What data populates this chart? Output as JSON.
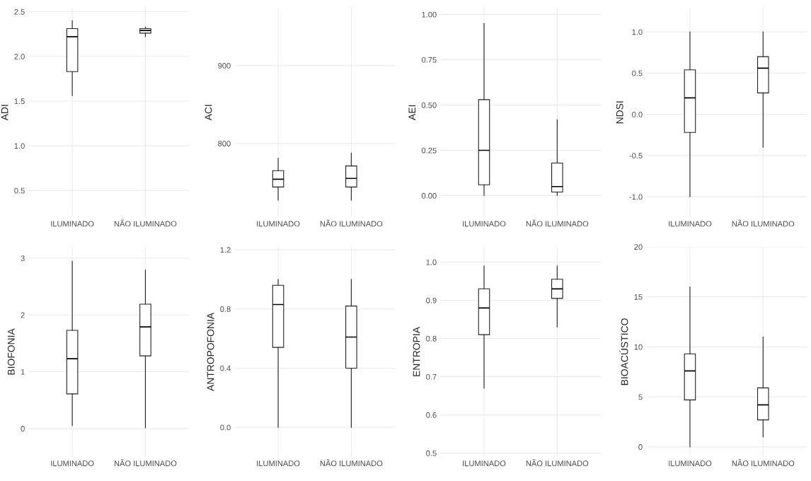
{
  "chart_data": [
    {
      "type": "box",
      "ylabel": "ADI",
      "categories": [
        "ILUMINADO",
        "NÃO ILUMINADO"
      ],
      "color": "#ffffff",
      "grid": true,
      "ylim": [
        0.2,
        2.55
      ],
      "yticks": [
        0.5,
        {
          "value": 1.0,
          "label": "1.0"
        },
        1.5,
        {
          "value": 2.0,
          "label": "2.0"
        },
        2.5
      ],
      "boxes": [
        {
          "low": 1.56,
          "q1": 1.83,
          "median": 2.22,
          "q3": 2.31,
          "high": 2.4
        },
        {
          "low": 2.22,
          "q1": 2.26,
          "median": 2.29,
          "q3": 2.31,
          "high": 2.33
        }
      ]
    },
    {
      "type": "box",
      "ylabel": "ACI",
      "categories": [
        "ILUMINADO",
        "NÃO ILUMINADO"
      ],
      "color": "#ffffff",
      "grid": true,
      "ylim": [
        705,
        975
      ],
      "yticks": [
        800,
        900
      ],
      "boxes": [
        {
          "low": 727,
          "q1": 744,
          "median": 754,
          "q3": 765,
          "high": 781
        },
        {
          "low": 727,
          "q1": 744,
          "median": 755,
          "q3": 771,
          "high": 788
        }
      ]
    },
    {
      "type": "box",
      "ylabel": "AEI",
      "categories": [
        "ILUMINADO",
        "NÃO ILUMINADO"
      ],
      "color": "#ffffff",
      "grid": true,
      "ylim": [
        -0.12,
        1.04
      ],
      "yticks": [
        {
          "value": 0.0,
          "label": "0.00"
        },
        {
          "value": 0.25,
          "label": "0.25"
        },
        {
          "value": 0.5,
          "label": "0.50"
        },
        {
          "value": 0.75,
          "label": "0.75"
        },
        {
          "value": 1.0,
          "label": "1.00"
        }
      ],
      "boxes": [
        {
          "low": 0.0,
          "q1": 0.06,
          "median": 0.25,
          "q3": 0.53,
          "high": 0.95
        },
        {
          "low": 0.0,
          "q1": 0.02,
          "median": 0.05,
          "q3": 0.18,
          "high": 0.42
        }
      ]
    },
    {
      "type": "box",
      "ylabel": "NDSI",
      "categories": [
        "ILUMINADO",
        "NÃO ILUMINADO"
      ],
      "color": "#ffffff",
      "grid": true,
      "ylim": [
        -1.25,
        1.3
      ],
      "yticks": [
        {
          "value": -1.0,
          "label": "-1.0"
        },
        -0.5,
        {
          "value": 0.0,
          "label": "0.0"
        },
        0.5,
        {
          "value": 1.0,
          "label": "1.0"
        }
      ],
      "boxes": [
        {
          "low": -1.0,
          "q1": -0.22,
          "median": 0.2,
          "q3": 0.54,
          "high": 1.0
        },
        {
          "low": -0.4,
          "q1": 0.26,
          "median": 0.56,
          "q3": 0.7,
          "high": 1.0
        }
      ]
    },
    {
      "type": "box",
      "ylabel": "BIOFONIA",
      "categories": [
        "ILUMINADO",
        "NÃO ILUMINADO"
      ],
      "color": "#ffffff",
      "grid": true,
      "ylim": [
        -0.5,
        3.2
      ],
      "yticks": [
        0,
        1,
        2,
        3
      ],
      "boxes": [
        {
          "low": 0.05,
          "q1": 0.61,
          "median": 1.23,
          "q3": 1.73,
          "high": 2.95
        },
        {
          "low": 0.01,
          "q1": 1.28,
          "median": 1.79,
          "q3": 2.19,
          "high": 2.79
        }
      ]
    },
    {
      "type": "box",
      "ylabel": "ANTROPOFONIA",
      "categories": [
        "ILUMINADO",
        "NÃO ILUMINADO"
      ],
      "color": "#ffffff",
      "grid": true,
      "ylim": [
        -0.2,
        1.22
      ],
      "yticks": [
        {
          "value": 0.0,
          "label": "0.0"
        },
        0.4,
        0.8,
        1.2
      ],
      "boxes": [
        {
          "low": 0.0,
          "q1": 0.54,
          "median": 0.83,
          "q3": 0.96,
          "high": 1.0
        },
        {
          "low": 0.0,
          "q1": 0.4,
          "median": 0.61,
          "q3": 0.82,
          "high": 1.0
        }
      ]
    },
    {
      "type": "box",
      "ylabel": "ENTROPIA",
      "categories": [
        "ILUMINADO",
        "NÃO ILUMINADO"
      ],
      "color": "#ffffff",
      "grid": true,
      "ylim": [
        0.49,
        1.04
      ],
      "yticks": [
        0.5,
        0.6,
        0.7,
        0.8,
        0.9,
        {
          "value": 1.0,
          "label": "1.0"
        }
      ],
      "boxes": [
        {
          "low": 0.67,
          "q1": 0.81,
          "median": 0.88,
          "q3": 0.93,
          "high": 0.99
        },
        {
          "low": 0.83,
          "q1": 0.905,
          "median": 0.93,
          "q3": 0.955,
          "high": 0.99
        }
      ]
    },
    {
      "type": "box",
      "ylabel": "BIOACÚSTICO",
      "categories": [
        "ILUMINADO",
        "NÃO ILUMINADO"
      ],
      "color": "#ffffff",
      "grid": true,
      "ylim": [
        -1,
        20
      ],
      "yticks": [
        0,
        5,
        10,
        15,
        20
      ],
      "boxes": [
        {
          "low": 0.0,
          "q1": 4.7,
          "median": 7.6,
          "q3": 9.3,
          "high": 16.0
        },
        {
          "low": 1.0,
          "q1": 2.7,
          "median": 4.2,
          "q3": 5.9,
          "high": 11.0
        }
      ]
    }
  ]
}
